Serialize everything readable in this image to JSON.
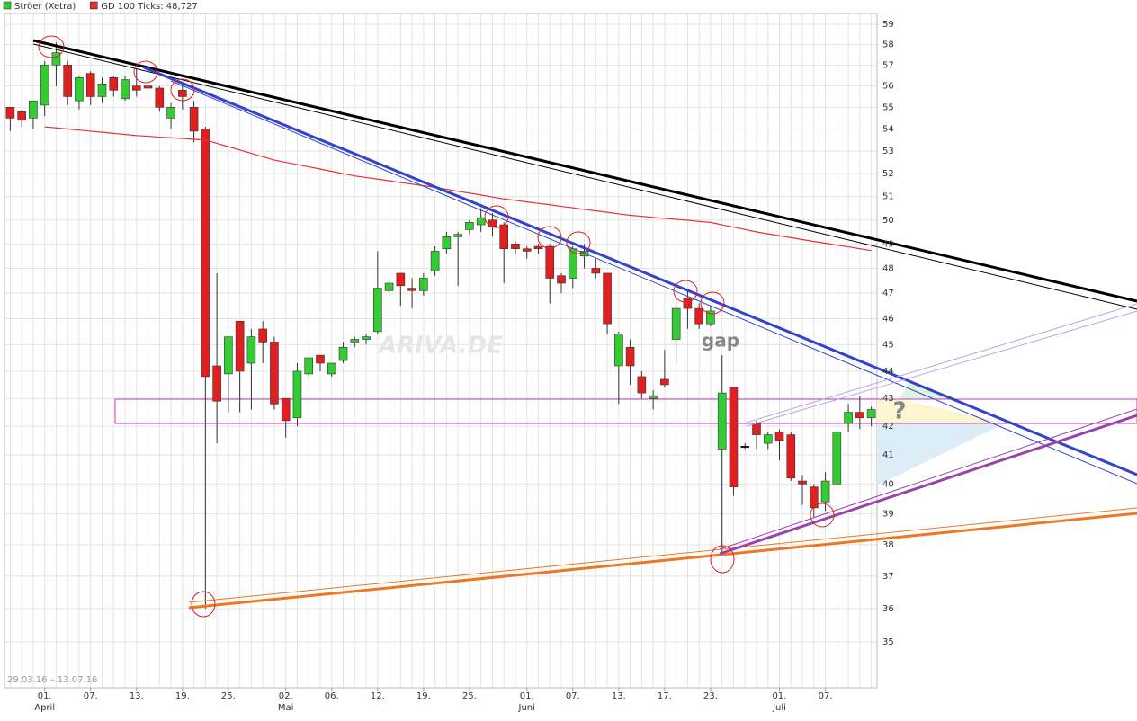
{
  "chart_data": {
    "type": "candlestick",
    "legend": "top-left",
    "log_scale": true,
    "grid": true,
    "date_range": "29.03.16 – 13.07.16",
    "watermark": "ARIVA.DE",
    "annotations": [
      "gap",
      "?"
    ],
    "ylim": [
      33.67,
      59.54
    ],
    "yticks": [
      35,
      36,
      37,
      38,
      39,
      40,
      41,
      42,
      43,
      44,
      45,
      46,
      47,
      48,
      49,
      50,
      51,
      52,
      53,
      54,
      55,
      56,
      57,
      58,
      59
    ],
    "categories": [
      null,
      null,
      null,
      "01.",
      null,
      null,
      null,
      "07.",
      null,
      null,
      null,
      "13.",
      null,
      null,
      null,
      "19.",
      null,
      null,
      null,
      "25.",
      null,
      null,
      null,
      null,
      "02.",
      null,
      null,
      null,
      "06.",
      null,
      null,
      null,
      "12.",
      null,
      null,
      null,
      "19.",
      null,
      null,
      null,
      "25.",
      null,
      null,
      null,
      null,
      "01.",
      null,
      null,
      null,
      "07.",
      null,
      null,
      null,
      "13.",
      null,
      null,
      null,
      "17.",
      null,
      null,
      null,
      "23.",
      null,
      null,
      null,
      null,
      null,
      "01.",
      null,
      null,
      null,
      "07.",
      null,
      null,
      null,
      null
    ],
    "months": [
      null,
      null,
      null,
      "April",
      null,
      null,
      null,
      null,
      null,
      null,
      null,
      null,
      null,
      null,
      null,
      null,
      null,
      null,
      null,
      null,
      null,
      null,
      null,
      null,
      "Mai",
      null,
      null,
      null,
      null,
      null,
      null,
      null,
      null,
      null,
      null,
      null,
      null,
      null,
      null,
      null,
      null,
      null,
      null,
      null,
      null,
      "Juni",
      null,
      null,
      null,
      null,
      null,
      null,
      null,
      null,
      null,
      null,
      null,
      null,
      null,
      null,
      null,
      null,
      null,
      null,
      null,
      null,
      null,
      "Juli",
      null,
      null,
      null,
      null,
      null,
      null,
      null,
      null
    ],
    "series": [
      {
        "name": "Ströer (Xetra)",
        "color": "#33cc33",
        "color_down": "#e02020",
        "open": [
          55.0,
          54.8,
          54.5,
          55.1,
          57.0,
          57.0,
          55.3,
          56.6,
          55.5,
          56.4,
          55.4,
          56.0,
          56.0,
          55.9,
          54.5,
          55.8,
          55.0,
          54.0,
          44.2,
          43.9,
          45.9,
          44.3,
          45.6,
          45.1,
          43.0,
          42.3,
          43.9,
          44.6,
          43.9,
          44.4,
          45.1,
          45.2,
          45.5,
          47.1,
          47.8,
          47.2,
          47.1,
          47.9,
          48.8,
          49.3,
          49.6,
          49.8,
          50.0,
          49.8,
          49.0,
          48.8,
          48.9,
          48.9,
          47.7,
          47.6,
          48.5,
          48.0,
          47.8,
          44.2,
          44.9,
          43.8,
          43.0,
          43.7,
          45.2,
          46.8,
          46.4,
          45.8,
          41.2,
          43.4,
          41.3,
          42.1,
          41.4,
          41.8,
          41.7,
          40.1,
          39.9,
          39.4,
          40.0,
          42.1,
          42.5,
          42.3
        ],
        "high": [
          55.0,
          54.9,
          55.3,
          57.2,
          58.1,
          57.2,
          56.5,
          56.7,
          56.4,
          56.5,
          56.5,
          56.8,
          57.0,
          56.0,
          55.2,
          56.1,
          55.3,
          54.1,
          47.8,
          45.3,
          45.9,
          45.6,
          45.9,
          45.3,
          43.0,
          44.3,
          44.5,
          44.6,
          44.3,
          45.1,
          45.3,
          45.4,
          48.7,
          47.5,
          47.8,
          47.6,
          47.8,
          48.9,
          49.5,
          49.5,
          50.0,
          50.5,
          50.3,
          49.9,
          49.1,
          48.9,
          49.0,
          49.0,
          47.8,
          48.9,
          49.0,
          48.4,
          47.8,
          45.5,
          45.2,
          44.0,
          43.3,
          44.8,
          46.7,
          47.1,
          46.6,
          46.5,
          44.6,
          43.4,
          41.4,
          42.2,
          41.8,
          41.9,
          41.8,
          40.3,
          40.0,
          40.4,
          41.8,
          42.8,
          43.1,
          42.7
        ],
        "low": [
          53.9,
          54.1,
          54.0,
          54.6,
          56.0,
          55.1,
          54.9,
          55.1,
          55.2,
          55.5,
          55.3,
          55.5,
          55.6,
          54.8,
          54.0,
          54.9,
          53.4,
          36.0,
          41.4,
          42.5,
          42.5,
          42.6,
          44.3,
          42.6,
          41.6,
          42.0,
          43.8,
          44.0,
          43.8,
          44.3,
          44.9,
          45.0,
          45.4,
          46.9,
          46.5,
          46.4,
          46.9,
          47.7,
          48.6,
          47.3,
          49.4,
          49.5,
          49.3,
          47.4,
          48.6,
          48.4,
          48.6,
          46.6,
          47.0,
          47.2,
          48.0,
          47.6,
          45.4,
          42.8,
          43.5,
          43.0,
          42.6,
          43.4,
          44.3,
          45.6,
          45.6,
          45.7,
          37.7,
          39.6,
          41.2,
          41.2,
          41.2,
          40.8,
          40.1,
          39.3,
          38.9,
          39.1,
          40.0,
          41.8,
          41.9,
          42.0
        ],
        "close": [
          54.5,
          54.4,
          55.3,
          57.0,
          57.6,
          55.5,
          56.4,
          55.5,
          56.1,
          55.8,
          56.3,
          55.8,
          55.9,
          55.0,
          55.0,
          55.5,
          53.9,
          43.8,
          42.9,
          45.3,
          44.0,
          45.3,
          45.1,
          42.8,
          42.2,
          44.0,
          44.5,
          44.3,
          44.3,
          44.9,
          45.2,
          45.3,
          47.2,
          47.4,
          47.3,
          47.1,
          47.6,
          48.7,
          49.3,
          49.4,
          49.9,
          50.1,
          49.7,
          48.8,
          48.8,
          48.7,
          48.8,
          47.6,
          47.4,
          48.8,
          48.7,
          47.8,
          45.8,
          45.4,
          44.2,
          43.2,
          43.1,
          43.5,
          46.4,
          46.4,
          45.8,
          46.3,
          43.2,
          39.9,
          41.3,
          41.7,
          41.7,
          41.5,
          40.2,
          40.0,
          39.2,
          40.1,
          41.8,
          42.5,
          42.3,
          42.6
        ]
      },
      {
        "name": "GD 100 Ticks: 48,727",
        "color": "#e83030",
        "values": [
          null,
          null,
          null,
          54.1,
          54.05,
          54.0,
          53.95,
          53.9,
          53.85,
          53.8,
          53.75,
          53.7,
          53.67,
          53.63,
          53.6,
          53.57,
          53.53,
          53.5,
          53.35,
          53.2,
          53.05,
          52.9,
          52.75,
          52.6,
          52.5,
          52.4,
          52.3,
          52.2,
          52.1,
          52.0,
          51.9,
          51.83,
          51.76,
          51.69,
          51.61,
          51.54,
          51.47,
          51.4,
          51.32,
          51.23,
          51.15,
          51.07,
          50.98,
          50.9,
          50.84,
          50.77,
          50.71,
          50.65,
          50.58,
          50.52,
          50.45,
          50.39,
          50.33,
          50.26,
          50.2,
          50.16,
          50.11,
          50.07,
          50.03,
          49.99,
          49.94,
          49.9,
          49.8,
          49.7,
          49.6,
          49.5,
          49.42,
          49.34,
          49.26,
          49.18,
          49.1,
          49.03,
          48.95,
          48.88,
          48.8,
          48.727
        ]
      }
    ]
  }
}
